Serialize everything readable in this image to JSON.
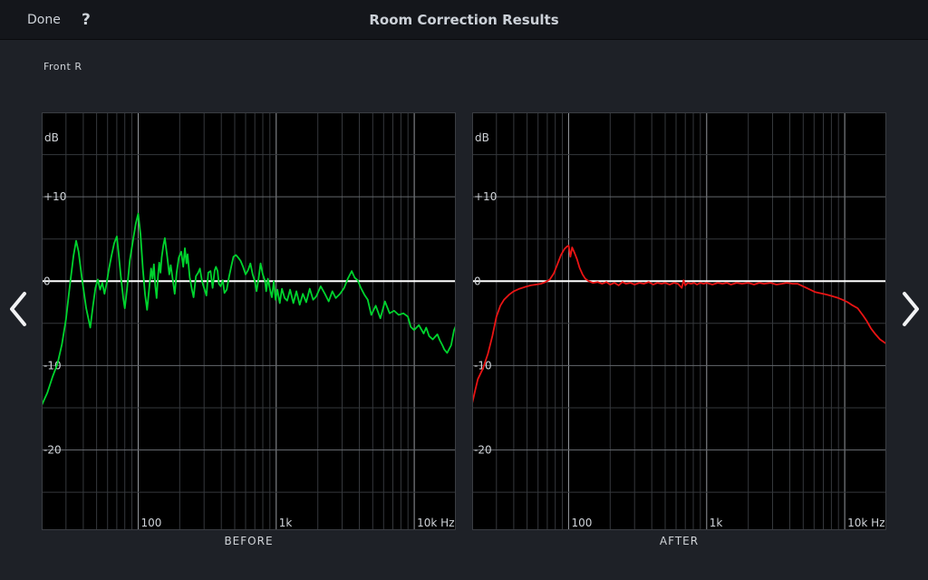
{
  "topbar": {
    "done_label": "Done",
    "help_label": "?",
    "title": "Room Correction Results"
  },
  "speaker": "Front R",
  "captions": {
    "before": "BEFORE",
    "after": "AFTER"
  },
  "colors": {
    "page_bg": "#1e2127",
    "topbar_bg": "#14161b",
    "chart_bg": "#000000",
    "before_trace": "#00d42e",
    "after_trace": "#ea1414",
    "zero_line": "#ffffff",
    "grid_minor": "#35383c",
    "grid_db_major": "#64686d",
    "grid_decade": "#94989d",
    "label": "#cfd3d8"
  },
  "chart_data": [
    {
      "type": "line",
      "title": "BEFORE",
      "xlabel": "Hz",
      "ylabel": "dB",
      "x_scale": "log",
      "xlim": [
        20,
        20000
      ],
      "ylim": [
        -29.5,
        20
      ],
      "grid_db_step": 5,
      "legend": "none",
      "y_unit_label": "dB",
      "x_ticks": [
        {
          "f": 100,
          "label": "100"
        },
        {
          "f": 1000,
          "label": "1k"
        },
        {
          "f": 10000,
          "label": "10k Hz"
        }
      ],
      "y_ticks": [
        {
          "db": 10,
          "label": "+10"
        },
        {
          "db": 0,
          "label": "0"
        },
        {
          "db": -10,
          "label": "-10"
        },
        {
          "db": -20,
          "label": "-20"
        }
      ],
      "series": [
        {
          "name": "Front R frequency response before correction",
          "color": "#00d42e",
          "points": [
            [
              20,
              -14.7
            ],
            [
              22,
              -13.2
            ],
            [
              24,
              -11.3
            ],
            [
              26,
              -9.8
            ],
            [
              28,
              -7.5
            ],
            [
              30,
              -4.5
            ],
            [
              32,
              -0.5
            ],
            [
              34,
              3.0
            ],
            [
              35.5,
              4.8
            ],
            [
              37,
              3.5
            ],
            [
              39,
              0.5
            ],
            [
              42,
              -3.2
            ],
            [
              45,
              -5.5
            ],
            [
              47,
              -3.0
            ],
            [
              49,
              -0.8
            ],
            [
              51,
              0.2
            ],
            [
              53,
              -1.0
            ],
            [
              55,
              -0.2
            ],
            [
              57,
              -1.5
            ],
            [
              59,
              -0.3
            ],
            [
              61,
              1.2
            ],
            [
              64,
              3.0
            ],
            [
              67,
              4.5
            ],
            [
              70,
              5.3
            ],
            [
              72,
              3.5
            ],
            [
              75,
              0.5
            ],
            [
              78,
              -2.0
            ],
            [
              80,
              -3.2
            ],
            [
              83,
              -1.0
            ],
            [
              87,
              2.5
            ],
            [
              92,
              5.0
            ],
            [
              96,
              6.8
            ],
            [
              100,
              8.0
            ],
            [
              104,
              5.5
            ],
            [
              108,
              1.5
            ],
            [
              112,
              -1.5
            ],
            [
              116,
              -3.4
            ],
            [
              120,
              -1.0
            ],
            [
              124,
              1.5
            ],
            [
              127,
              0.3
            ],
            [
              130,
              2.0
            ],
            [
              133,
              -0.5
            ],
            [
              136,
              -2.0
            ],
            [
              139,
              0.5
            ],
            [
              142,
              2.2
            ],
            [
              145,
              1.0
            ],
            [
              148,
              2.8
            ],
            [
              152,
              4.2
            ],
            [
              156,
              5.1
            ],
            [
              162,
              3.0
            ],
            [
              168,
              0.8
            ],
            [
              172,
              1.9
            ],
            [
              178,
              0.2
            ],
            [
              184,
              -1.5
            ],
            [
              190,
              1.0
            ],
            [
              197,
              2.8
            ],
            [
              205,
              3.5
            ],
            [
              212,
              1.7
            ],
            [
              218,
              3.9
            ],
            [
              224,
              2.1
            ],
            [
              228,
              3.2
            ],
            [
              236,
              0.5
            ],
            [
              245,
              -1.0
            ],
            [
              252,
              -1.9
            ],
            [
              262,
              0.6
            ],
            [
              272,
              1.0
            ],
            [
              280,
              1.5
            ],
            [
              290,
              0.0
            ],
            [
              300,
              -0.8
            ],
            [
              312,
              -1.7
            ],
            [
              322,
              1.0
            ],
            [
              334,
              1.2
            ],
            [
              346,
              -0.8
            ],
            [
              358,
              1.3
            ],
            [
              366,
              1.7
            ],
            [
              376,
              1.2
            ],
            [
              384,
              -0.3
            ],
            [
              396,
              -0.6
            ],
            [
              410,
              0.1
            ],
            [
              422,
              -1.4
            ],
            [
              438,
              -1.0
            ],
            [
              455,
              0.5
            ],
            [
              472,
              1.7
            ],
            [
              490,
              2.9
            ],
            [
              510,
              3.1
            ],
            [
              530,
              2.8
            ],
            [
              552,
              2.4
            ],
            [
              575,
              1.7
            ],
            [
              600,
              0.8
            ],
            [
              625,
              1.3
            ],
            [
              650,
              2.1
            ],
            [
              675,
              0.8
            ],
            [
              700,
              0.0
            ],
            [
              720,
              -1.2
            ],
            [
              745,
              0.3
            ],
            [
              770,
              2.1
            ],
            [
              800,
              0.8
            ],
            [
              830,
              0.0
            ],
            [
              845,
              -1.2
            ],
            [
              870,
              0.3
            ],
            [
              900,
              -0.9
            ],
            [
              930,
              -1.9
            ],
            [
              960,
              0.0
            ],
            [
              990,
              -2.2
            ],
            [
              1020,
              -1.0
            ],
            [
              1060,
              -2.6
            ],
            [
              1100,
              -0.9
            ],
            [
              1150,
              -2.0
            ],
            [
              1200,
              -2.3
            ],
            [
              1260,
              -1.0
            ],
            [
              1330,
              -2.6
            ],
            [
              1400,
              -1.2
            ],
            [
              1480,
              -2.8
            ],
            [
              1560,
              -1.5
            ],
            [
              1650,
              -2.5
            ],
            [
              1750,
              -0.9
            ],
            [
              1850,
              -2.2
            ],
            [
              1950,
              -1.8
            ],
            [
              2100,
              -0.6
            ],
            [
              2250,
              -1.5
            ],
            [
              2400,
              -2.4
            ],
            [
              2550,
              -1.2
            ],
            [
              2700,
              -2.0
            ],
            [
              2900,
              -1.5
            ],
            [
              3100,
              -0.8
            ],
            [
              3300,
              0.3
            ],
            [
              3520,
              1.2
            ],
            [
              3700,
              0.4
            ],
            [
              3900,
              0.1
            ],
            [
              4100,
              -0.8
            ],
            [
              4350,
              -1.6
            ],
            [
              4600,
              -2.2
            ],
            [
              4880,
              -4.0
            ],
            [
              5260,
              -2.9
            ],
            [
              5680,
              -4.4
            ],
            [
              6130,
              -2.4
            ],
            [
              6620,
              -3.8
            ],
            [
              7150,
              -3.5
            ],
            [
              7710,
              -4.0
            ],
            [
              8330,
              -3.8
            ],
            [
              8990,
              -4.2
            ],
            [
              9420,
              -5.4
            ],
            [
              9970,
              -5.8
            ],
            [
              10800,
              -5.2
            ],
            [
              11700,
              -6.2
            ],
            [
              12200,
              -5.5
            ],
            [
              12800,
              -6.5
            ],
            [
              13600,
              -6.9
            ],
            [
              14700,
              -6.3
            ],
            [
              15300,
              -7.0
            ],
            [
              16000,
              -7.6
            ],
            [
              16500,
              -8.1
            ],
            [
              17300,
              -8.5
            ],
            [
              18500,
              -7.6
            ],
            [
              19400,
              -5.8
            ],
            [
              20000,
              -5.3
            ]
          ]
        }
      ]
    },
    {
      "type": "line",
      "title": "AFTER",
      "xlabel": "Hz",
      "ylabel": "dB",
      "x_scale": "log",
      "xlim": [
        20,
        20000
      ],
      "ylim": [
        -29.5,
        20
      ],
      "grid_db_step": 5,
      "legend": "none",
      "y_unit_label": "dB",
      "x_ticks": [
        {
          "f": 100,
          "label": "100"
        },
        {
          "f": 1000,
          "label": "1k"
        },
        {
          "f": 10000,
          "label": "10k Hz"
        }
      ],
      "y_ticks": [
        {
          "db": 10,
          "label": "+10"
        },
        {
          "db": 0,
          "label": "0"
        },
        {
          "db": -10,
          "label": "-10"
        },
        {
          "db": -20,
          "label": "-20"
        }
      ],
      "series": [
        {
          "name": "Front R frequency response after correction",
          "color": "#ea1414",
          "points": [
            [
              20,
              -14.5
            ],
            [
              21,
              -13.0
            ],
            [
              22,
              -11.6
            ],
            [
              24,
              -10.3
            ],
            [
              26,
              -8.6
            ],
            [
              28,
              -6.5
            ],
            [
              30,
              -4.2
            ],
            [
              32,
              -2.9
            ],
            [
              34,
              -2.2
            ],
            [
              37,
              -1.6
            ],
            [
              40,
              -1.2
            ],
            [
              44,
              -0.9
            ],
            [
              48,
              -0.7
            ],
            [
              53,
              -0.5
            ],
            [
              58,
              -0.4
            ],
            [
              63,
              -0.3
            ],
            [
              68,
              -0.1
            ],
            [
              73,
              0.2
            ],
            [
              78,
              0.9
            ],
            [
              83,
              2.0
            ],
            [
              88,
              3.1
            ],
            [
              93,
              3.8
            ],
            [
              97,
              4.1
            ],
            [
              100,
              4.2
            ],
            [
              103,
              2.9
            ],
            [
              106,
              4.0
            ],
            [
              110,
              3.4
            ],
            [
              115,
              2.6
            ],
            [
              120,
              1.6
            ],
            [
              126,
              0.8
            ],
            [
              132,
              0.3
            ],
            [
              140,
              0.0
            ],
            [
              150,
              -0.2
            ],
            [
              162,
              -0.1
            ],
            [
              175,
              -0.3
            ],
            [
              188,
              -0.1
            ],
            [
              200,
              -0.4
            ],
            [
              215,
              -0.2
            ],
            [
              230,
              -0.5
            ],
            [
              245,
              -0.1
            ],
            [
              260,
              -0.3
            ],
            [
              280,
              -0.2
            ],
            [
              300,
              -0.4
            ],
            [
              325,
              -0.2
            ],
            [
              350,
              -0.3
            ],
            [
              380,
              -0.1
            ],
            [
              410,
              -0.4
            ],
            [
              440,
              -0.2
            ],
            [
              470,
              -0.3
            ],
            [
              500,
              -0.2
            ],
            [
              540,
              -0.4
            ],
            [
              580,
              -0.2
            ],
            [
              620,
              -0.3
            ],
            [
              660,
              -0.8
            ],
            [
              680,
              0.1
            ],
            [
              700,
              -0.5
            ],
            [
              730,
              -0.2
            ],
            [
              770,
              -0.3
            ],
            [
              810,
              -0.2
            ],
            [
              850,
              -0.4
            ],
            [
              900,
              -0.2
            ],
            [
              950,
              -0.3
            ],
            [
              1000,
              -0.2
            ],
            [
              1100,
              -0.4
            ],
            [
              1200,
              -0.2
            ],
            [
              1300,
              -0.3
            ],
            [
              1400,
              -0.2
            ],
            [
              1500,
              -0.4
            ],
            [
              1650,
              -0.2
            ],
            [
              1800,
              -0.3
            ],
            [
              2000,
              -0.2
            ],
            [
              2200,
              -0.4
            ],
            [
              2400,
              -0.2
            ],
            [
              2600,
              -0.3
            ],
            [
              2900,
              -0.2
            ],
            [
              3200,
              -0.4
            ],
            [
              3500,
              -0.3
            ],
            [
              3800,
              -0.2
            ],
            [
              4200,
              -0.3
            ],
            [
              4550,
              -0.3
            ],
            [
              5280,
              -0.8
            ],
            [
              6130,
              -1.3
            ],
            [
              7000,
              -1.5
            ],
            [
              7460,
              -1.6
            ],
            [
              8200,
              -1.8
            ],
            [
              9000,
              -2.0
            ],
            [
              9650,
              -2.2
            ],
            [
              10500,
              -2.5
            ],
            [
              11200,
              -2.8
            ],
            [
              12400,
              -3.2
            ],
            [
              13600,
              -4.1
            ],
            [
              14400,
              -4.7
            ],
            [
              15500,
              -5.6
            ],
            [
              16700,
              -6.3
            ],
            [
              18000,
              -6.9
            ],
            [
              19900,
              -7.4
            ]
          ]
        }
      ]
    }
  ]
}
